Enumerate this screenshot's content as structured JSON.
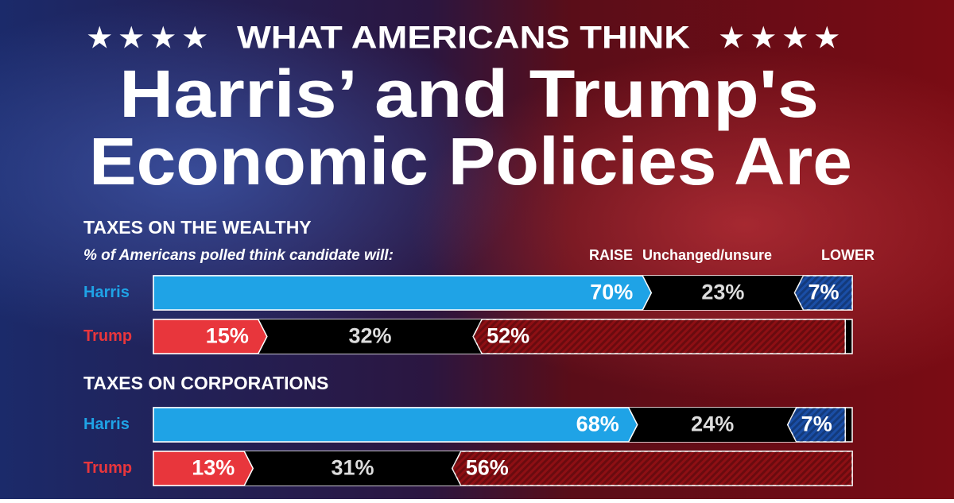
{
  "header": {
    "kicker": "WHAT AMERICANS THINK",
    "title_lines": [
      "Harris’ and Trump's",
      "Economic Policies Are"
    ]
  },
  "chart_data": [
    {
      "type": "stacked-bar",
      "title": "TAXES ON THE WEALTHY",
      "subtitle": "% of Americans polled think candidate will:",
      "categories": [
        "Harris",
        "Trump"
      ],
      "category_colors": [
        "#1fa3e6",
        "#e8363c"
      ],
      "xlim": [
        0,
        100
      ],
      "series": [
        {
          "name": "RAISE",
          "colors": [
            "#1fa3e6",
            "#e8363c"
          ],
          "values": [
            70,
            15
          ],
          "value_labels": [
            "70%",
            "15%"
          ]
        },
        {
          "name": "Unchanged/unsure",
          "colors": [
            "#000000",
            "#000000"
          ],
          "values": [
            23,
            32
          ],
          "value_labels": [
            "23%",
            "32%"
          ]
        },
        {
          "name": "LOWER",
          "colors": [
            "#1a4ea6",
            "#8e0f14"
          ],
          "values": [
            7,
            52
          ],
          "value_labels": [
            "7%",
            "52%"
          ]
        }
      ]
    },
    {
      "type": "stacked-bar",
      "title": "TAXES ON CORPORATIONS",
      "categories": [
        "Harris",
        "Trump"
      ],
      "category_colors": [
        "#1fa3e6",
        "#e8363c"
      ],
      "xlim": [
        0,
        100
      ],
      "series": [
        {
          "colors": [
            "#1fa3e6",
            "#e8363c"
          ],
          "values": [
            68,
            13
          ],
          "value_labels": [
            "68%",
            "13%"
          ]
        },
        {
          "colors": [
            "#000000",
            "#000000"
          ],
          "values": [
            24,
            31
          ],
          "value_labels": [
            "24%",
            "31%"
          ]
        },
        {
          "colors": [
            "#1a4ea6",
            "#8e0f14"
          ],
          "values": [
            7,
            56
          ],
          "value_labels": [
            "7%",
            "56%"
          ]
        }
      ]
    }
  ]
}
